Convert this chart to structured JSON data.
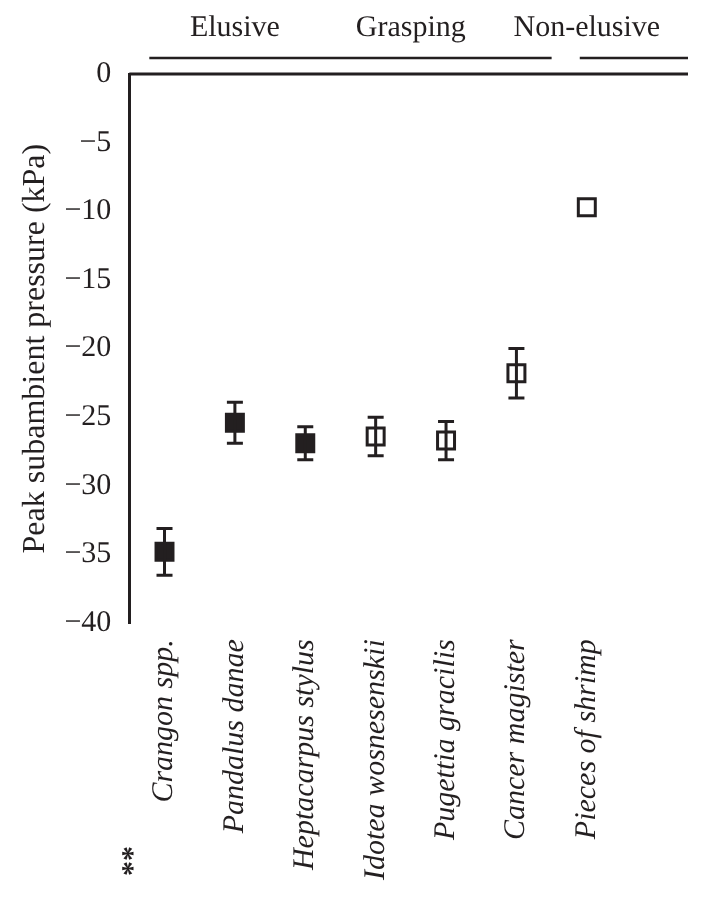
{
  "chart_data": {
    "type": "scatter",
    "ylabel": "Peak subambient pressure (kPa)",
    "categories": [
      "Crangon spp.",
      "Pandalus danae",
      "Heptacarpus stylus",
      "Idotea wosnesenskii",
      "Pugettia gracilis",
      "Cancer magister",
      "Pieces of shrimp"
    ],
    "series": [
      {
        "color": "#231f20",
        "x": [
          "Crangon spp.",
          "Pandalus danae",
          "Heptacarpus stylus"
        ],
        "values": [
          -34.8,
          -25.4,
          -26.9
        ],
        "errors": [
          1.7,
          1.5,
          1.2
        ]
      },
      {
        "color": "#ffffff",
        "x": [
          "Idotea wosnesenskii",
          "Pugettia gracilis",
          "Cancer magister"
        ],
        "values": [
          -26.4,
          -26.7,
          -21.8
        ],
        "errors": [
          1.4,
          1.4,
          1.8
        ]
      },
      {
        "color": "#ffffff",
        "x": [
          "Pieces of shrimp"
        ],
        "values": [
          -9.7
        ],
        "errors": [
          null
        ]
      }
    ],
    "ylim": [
      -40,
      0
    ],
    "yticks": [
      {
        "value": -40,
        "label": "−40"
      },
      {
        "value": -35,
        "label": "−35"
      },
      {
        "value": -30,
        "label": "−30"
      },
      {
        "value": -25,
        "label": "−25"
      },
      {
        "value": -20,
        "label": "−20"
      },
      {
        "value": -15,
        "label": "−15"
      },
      {
        "value": -10,
        "label": "−10"
      },
      {
        "value": -5,
        "label": "−5"
      },
      0
    ],
    "marker": "square",
    "grid": false,
    "legend": false,
    "annotations": [
      "Elusive",
      "Grasping",
      "Non-elusive",
      "**"
    ]
  }
}
